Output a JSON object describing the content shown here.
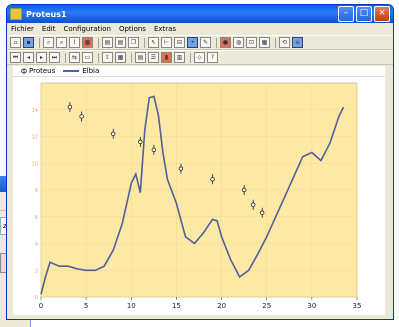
{
  "window": {
    "title": "Proteus1"
  },
  "menu": [
    "Fichier",
    "Edit",
    "Configuration",
    "Options",
    "Extras"
  ],
  "legend": {
    "points_label": "Proteus",
    "line_label": "Elbia"
  },
  "background_window": {
    "field_text": "zcrx-r"
  },
  "colors": {
    "plot_bg": "#fde9a6",
    "line": "#4f5f9a",
    "label_text": "#f2a35a",
    "titlebar": "#0a5fe8"
  },
  "chart_data": {
    "type": "line",
    "xlim": [
      0,
      35
    ],
    "ylim": [
      0,
      16
    ],
    "x_ticks": [
      0,
      5,
      10,
      15,
      20,
      25,
      30,
      35
    ],
    "y_ticks": [
      0,
      2,
      4,
      6,
      8,
      10,
      12,
      14
    ],
    "series": [
      {
        "name": "Elbia",
        "x": [
          0,
          0.5,
          1,
          2,
          3,
          4,
          5,
          6,
          7,
          8,
          9,
          10,
          10.5,
          11,
          11.5,
          12,
          12.5,
          13,
          13.5,
          14,
          15,
          16,
          17,
          18,
          19,
          19.5,
          20,
          21,
          22,
          23,
          24,
          25,
          26,
          27,
          28,
          29,
          30,
          31,
          32,
          33,
          33.5
        ],
        "y": [
          0.2,
          1.5,
          2.6,
          2.3,
          2.3,
          2.1,
          2.0,
          2.0,
          2.3,
          3.5,
          5.5,
          8.5,
          9.2,
          7.8,
          12.5,
          14.9,
          15.0,
          13.6,
          10.8,
          8.8,
          7.0,
          4.5,
          4.0,
          4.8,
          5.8,
          5.7,
          4.5,
          2.8,
          1.5,
          2.0,
          3.2,
          4.5,
          6.0,
          7.5,
          9.0,
          10.5,
          10.8,
          10.2,
          11.5,
          13.5,
          14.2
        ]
      }
    ],
    "points": [
      {
        "x": 3.2,
        "y": 14.2
      },
      {
        "x": 4.5,
        "y": 13.5
      },
      {
        "x": 8.0,
        "y": 12.2
      },
      {
        "x": 11.0,
        "y": 11.6
      },
      {
        "x": 12.5,
        "y": 11.0
      },
      {
        "x": 15.5,
        "y": 9.6
      },
      {
        "x": 19.0,
        "y": 8.8
      },
      {
        "x": 22.5,
        "y": 8.0
      },
      {
        "x": 23.5,
        "y": 6.9
      },
      {
        "x": 24.5,
        "y": 6.3
      }
    ]
  }
}
